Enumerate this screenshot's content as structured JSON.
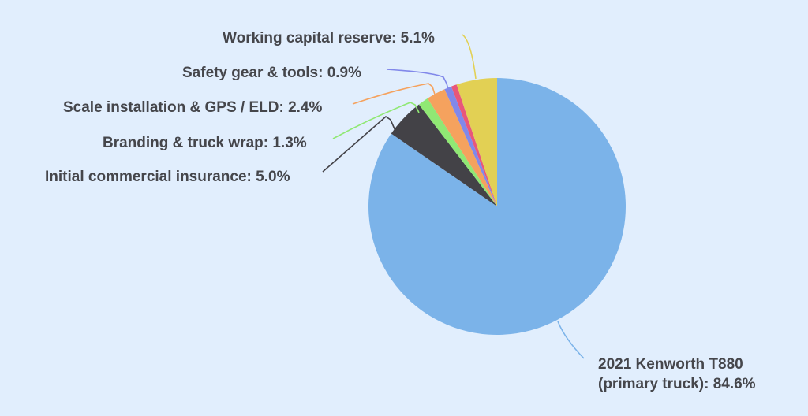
{
  "chart_data": {
    "type": "pie",
    "title": "",
    "start_angle_deg": 0,
    "direction": "clockwise",
    "slices": [
      {
        "label": "2021 Kenworth T880 (primary truck)",
        "value": 84.6,
        "color": "#7BB3E9"
      },
      {
        "label": "Initial commercial insurance",
        "value": 5.0,
        "color": "#434247"
      },
      {
        "label": "Branding & truck wrap",
        "value": 1.3,
        "color": "#90E874"
      },
      {
        "label": "Scale installation & GPS / ELD",
        "value": 2.4,
        "color": "#F5A25E"
      },
      {
        "label": "Safety gear & tools",
        "value": 0.9,
        "color": "#8188EA"
      },
      {
        "label": "",
        "value": 0.7,
        "color": "#E8577A"
      },
      {
        "label": "Working capital reserve",
        "value": 5.1,
        "color": "#E2D054"
      }
    ],
    "legend": "none (callout labels with leader lines)"
  },
  "labels": {
    "truck_line1": "2021 Kenworth T880",
    "truck_line2": "(primary truck): 84.6%",
    "insurance": "Initial commercial insurance: 5.0%",
    "branding": "Branding & truck wrap: 1.3%",
    "scale_gps": "Scale installation & GPS / ELD: 2.4%",
    "safety": "Safety gear & tools: 0.9%",
    "capital": "Working capital reserve: 5.1%"
  },
  "colors": {
    "background": "#E1EEFD",
    "label_text": "#45464B"
  }
}
